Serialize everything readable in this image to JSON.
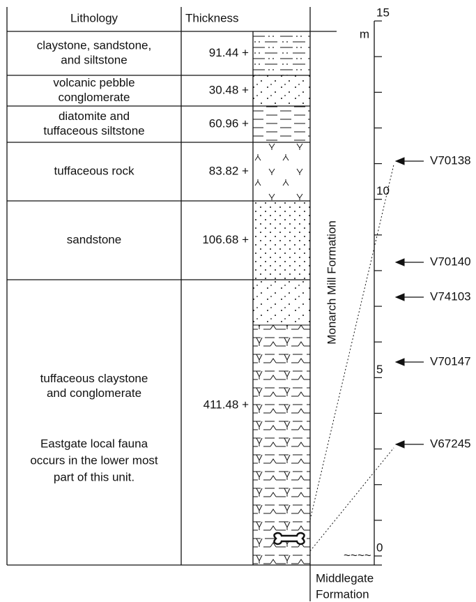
{
  "header": {
    "lithology": "Lithology",
    "thickness": "Thickness"
  },
  "units": [
    {
      "lithology": [
        "claystone, sandstone,",
        "and siltstone"
      ],
      "thickness": "91.44 +"
    },
    {
      "lithology": [
        "volcanic pebble",
        "conglomerate"
      ],
      "thickness": "30.48 +"
    },
    {
      "lithology": [
        "diatomite and",
        "tuffaceous siltstone"
      ],
      "thickness": "60.96 +"
    },
    {
      "lithology": [
        "tuffaceous rock"
      ],
      "thickness": "83.82 +"
    },
    {
      "lithology": [
        "sandstone"
      ],
      "thickness": "106.68 +"
    },
    {
      "lithology": [
        "tuffaceous claystone",
        "and conglomerate"
      ],
      "thickness": "411.48 +",
      "note": [
        "Eastgate local fauna",
        "occurs in the lower most",
        "part of this unit."
      ]
    }
  ],
  "scale": {
    "unit": "m",
    "labels": [
      "15",
      "10",
      "5",
      "0"
    ],
    "unconformity": "~~~~"
  },
  "formation": "Monarch Mill Formation",
  "base_formation": [
    "Middlegate",
    "Formation"
  ],
  "localities": [
    "V70138",
    "V70140",
    "V74103",
    "V70147",
    "V67245"
  ]
}
